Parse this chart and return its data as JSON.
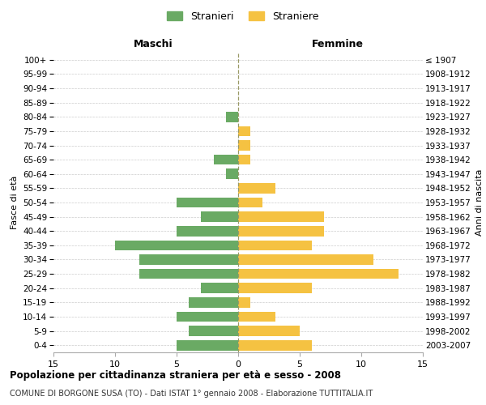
{
  "age_groups": [
    "0-4",
    "5-9",
    "10-14",
    "15-19",
    "20-24",
    "25-29",
    "30-34",
    "35-39",
    "40-44",
    "45-49",
    "50-54",
    "55-59",
    "60-64",
    "65-69",
    "70-74",
    "75-79",
    "80-84",
    "85-89",
    "90-94",
    "95-99",
    "100+"
  ],
  "birth_years": [
    "2003-2007",
    "1998-2002",
    "1993-1997",
    "1988-1992",
    "1983-1987",
    "1978-1982",
    "1973-1977",
    "1968-1972",
    "1963-1967",
    "1958-1962",
    "1953-1957",
    "1948-1952",
    "1943-1947",
    "1938-1942",
    "1933-1937",
    "1928-1932",
    "1923-1927",
    "1918-1922",
    "1913-1917",
    "1908-1912",
    "≤ 1907"
  ],
  "males": [
    5,
    4,
    5,
    4,
    3,
    8,
    8,
    10,
    5,
    3,
    5,
    0,
    1,
    2,
    0,
    0,
    1,
    0,
    0,
    0,
    0
  ],
  "females": [
    6,
    5,
    3,
    1,
    6,
    13,
    11,
    6,
    7,
    7,
    2,
    3,
    0,
    1,
    1,
    1,
    0,
    0,
    0,
    0,
    0
  ],
  "male_color": "#6aaa64",
  "female_color": "#f5c242",
  "male_label": "Stranieri",
  "female_label": "Straniere",
  "xlim": 15,
  "title": "Popolazione per cittadinanza straniera per età e sesso - 2008",
  "subtitle": "COMUNE DI BORGONE SUSA (TO) - Dati ISTAT 1° gennaio 2008 - Elaborazione TUTTITALIA.IT",
  "xlabel_left": "Maschi",
  "xlabel_right": "Femmine",
  "ylabel_left": "Fasce di età",
  "ylabel_right": "Anni di nascita",
  "background_color": "#ffffff",
  "grid_color": "#cccccc"
}
